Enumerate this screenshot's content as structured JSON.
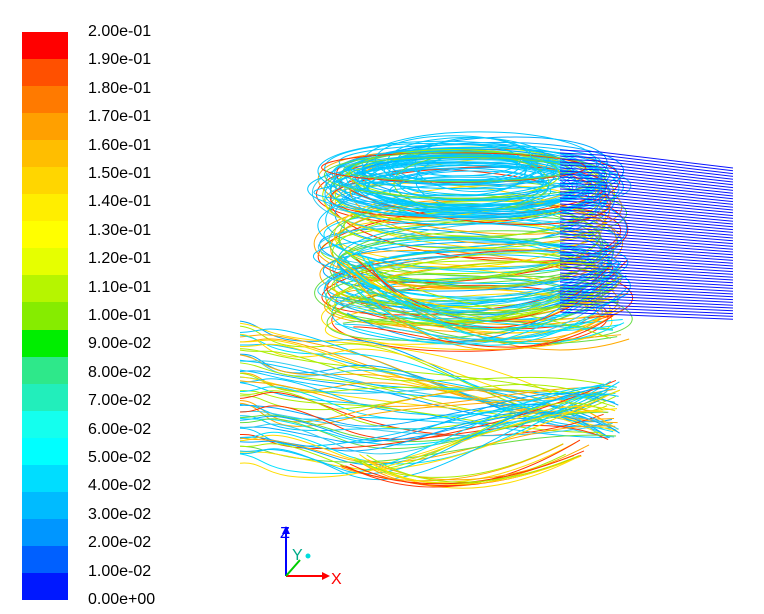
{
  "colorbar": {
    "labels": [
      "2.00e-01",
      "1.90e-01",
      "1.80e-01",
      "1.70e-01",
      "1.60e-01",
      "1.50e-01",
      "1.40e-01",
      "1.30e-01",
      "1.20e-01",
      "1.10e-01",
      "1.00e-01",
      "9.00e-02",
      "8.00e-02",
      "7.00e-02",
      "6.00e-02",
      "5.00e-02",
      "4.00e-02",
      "3.00e-02",
      "2.00e-02",
      "1.00e-02",
      "0.00e+00"
    ],
    "colors": [
      "#ff0000",
      "#ff5000",
      "#ff7a00",
      "#ffa000",
      "#ffbe00",
      "#ffd600",
      "#ffee00",
      "#ffff00",
      "#e6ff00",
      "#b6f500",
      "#86ec00",
      "#00ee00",
      "#2ee88a",
      "#22eebb",
      "#14ffee",
      "#00ffff",
      "#00ddff",
      "#00bbff",
      "#0096ff",
      "#0060ff",
      "#0018ff"
    ]
  },
  "axes": {
    "x_label": "X",
    "y_label": "Y",
    "z_label": "Z",
    "x_color": "#ff0000",
    "y_color": "#00cc00",
    "z_color": "#0000ff"
  },
  "scene": {
    "inlet_color": "#0a14ff",
    "palette": [
      "#00c8ff",
      "#00e0ff",
      "#33ccee",
      "#66dd44",
      "#aaee00",
      "#ffdd00",
      "#ffaa00",
      "#ff3300",
      "#00aaff"
    ]
  }
}
